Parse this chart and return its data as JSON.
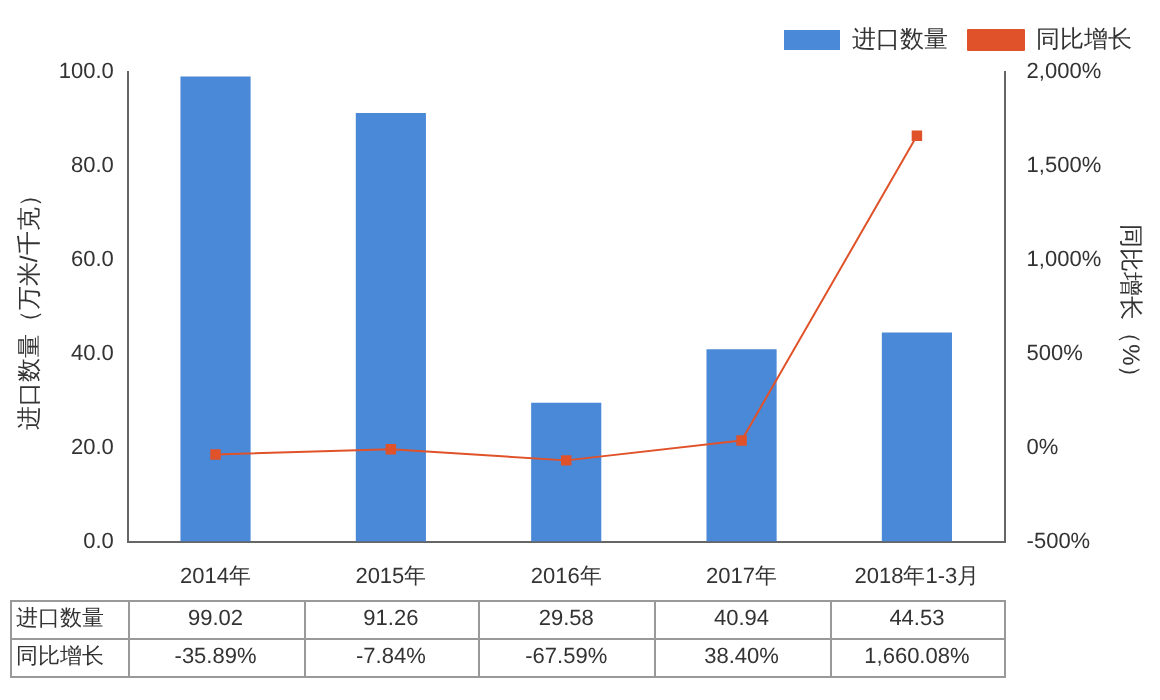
{
  "chart_data": {
    "type": "bar",
    "categories": [
      "2014年",
      "2015年",
      "2016年",
      "2017年",
      "2018年1-3月"
    ],
    "ylabel": "进口数量（万米/千克）",
    "y2label": "同比增长（%）",
    "series": [
      {
        "name": "进口数量",
        "color": "#4a88d8",
        "values": [
          99.02,
          91.26,
          29.58,
          40.94,
          44.53
        ],
        "value_labels": [
          "99.02",
          "91.26",
          "29.58",
          "40.94",
          "44.53"
        ]
      },
      {
        "name": "同比增长",
        "type": "line",
        "axis": "y2",
        "color": "#e0522a",
        "marker": "square",
        "values": [
          -35.89,
          -7.84,
          -67.59,
          38.4,
          1660.08
        ],
        "value_labels": [
          "-35.89%",
          "-7.84%",
          "-67.59%",
          "38.40%",
          "1,660.08%"
        ]
      }
    ],
    "ylim": [
      0,
      100
    ],
    "yticks": [
      {
        "value": 0,
        "label": "0.0"
      },
      {
        "value": 20,
        "label": "20.0"
      },
      {
        "value": 40,
        "label": "40.0"
      },
      {
        "value": 60,
        "label": "60.0"
      },
      {
        "value": 80,
        "label": "80.0"
      },
      {
        "value": 100,
        "label": "100.0"
      }
    ],
    "y2lim": [
      -500,
      2000
    ],
    "y2ticks": [
      {
        "value": -500,
        "label": "-500%"
      },
      {
        "value": 0,
        "label": "0%"
      },
      {
        "value": 500,
        "label": "500%"
      },
      {
        "value": 1000,
        "label": "1,000%"
      },
      {
        "value": 1500,
        "label": "1,500%"
      },
      {
        "value": 2000,
        "label": "2,000%"
      }
    ],
    "grid": false,
    "legend": "top right",
    "data_labels": true
  }
}
